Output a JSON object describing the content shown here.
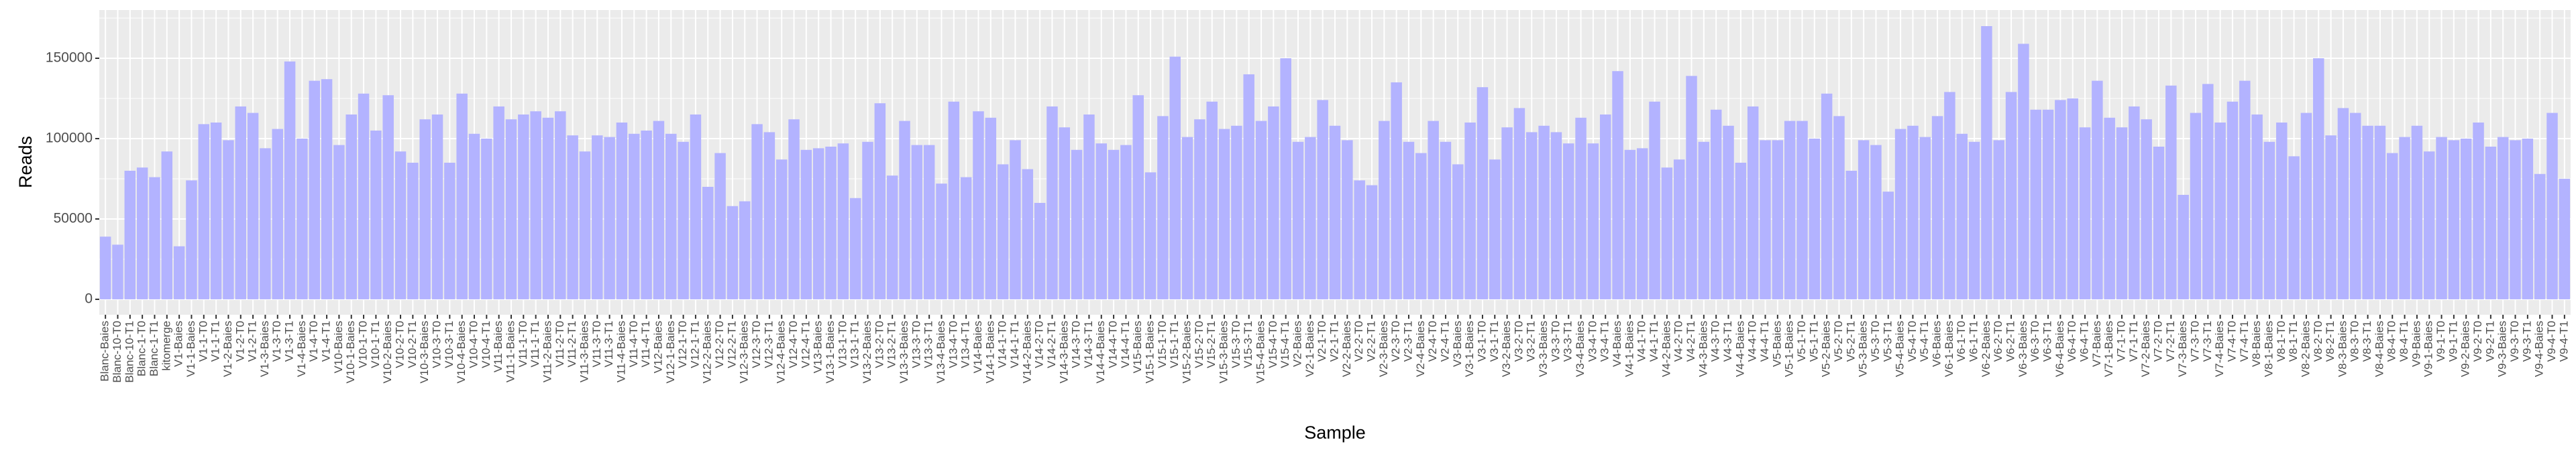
{
  "chart_data": {
    "type": "bar",
    "x_label": "Sample",
    "y_label": "Reads",
    "color": "#b3b3ff",
    "grid": true,
    "ylim": [
      -9600,
      180000
    ],
    "yticks": [
      0,
      50000,
      100000,
      150000
    ],
    "categories": [
      "Blanc-Baies",
      "Blanc-10-T0",
      "Blanc-10-T1",
      "Blanc-1-T0",
      "Blanc-1-T1",
      "kitomerge",
      "V1-Baies",
      "V1-1-Baies",
      "V1-1-T0",
      "V1-1-T1",
      "V1-2-Baies",
      "V1-2-T0",
      "V1-2-T1",
      "V1-3-Baies",
      "V1-3-T0",
      "V1-3-T1",
      "V1-4-Baies",
      "V1-4-T0",
      "V1-4-T1",
      "V10-Baies",
      "V10-1-Baies",
      "V10-1-T0",
      "V10-1-T1",
      "V10-2-Baies",
      "V10-2-T0",
      "V10-2-T1",
      "V10-3-Baies",
      "V10-3-T0",
      "V10-3-T1",
      "V10-4-Baies",
      "V10-4-T0",
      "V10-4-T1",
      "V11-Baies",
      "V11-1-Baies",
      "V11-1-T0",
      "V11-1-T1",
      "V11-2-Baies",
      "V11-2-T0",
      "V11-2-T1",
      "V11-3-Baies",
      "V11-3-T0",
      "V11-3-T1",
      "V11-4-Baies",
      "V11-4-T0",
      "V11-4-T1",
      "V12-Baies",
      "V12-1-Baies",
      "V12-1-T0",
      "V12-1-T1",
      "V12-2-Baies",
      "V12-2-T0",
      "V12-2-T1",
      "V12-3-Baies",
      "V12-3-T0",
      "V12-3-T1",
      "V12-4-Baies",
      "V12-4-T0",
      "V12-4-T1",
      "V13-Baies",
      "V13-1-Baies",
      "V13-1-T0",
      "V13-1-T1",
      "V13-2-Baies",
      "V13-2-T0",
      "V13-2-T1",
      "V13-3-Baies",
      "V13-3-T0",
      "V13-3-T1",
      "V13-4-Baies",
      "V13-4-T0",
      "V13-4-T1",
      "V14-Baies",
      "V14-1-Baies",
      "V14-1-T0",
      "V14-1-T1",
      "V14-2-Baies",
      "V14-2-T0",
      "V14-2-T1",
      "V14-3-Baies",
      "V14-3-T0",
      "V14-3-T1",
      "V14-4-Baies",
      "V14-4-T0",
      "V14-4-T1",
      "V15-Baies",
      "V15-1-Baies",
      "V15-1-T0",
      "V15-1-T1",
      "V15-2-Baies",
      "V15-2-T0",
      "V15-2-T1",
      "V15-3-Baies",
      "V15-3-T0",
      "V15-3-T1",
      "V15-4-Baies",
      "V15-4-T0",
      "V15-4-T1",
      "V2-Baies",
      "V2-1-Baies",
      "V2-1-T0",
      "V2-1-T1",
      "V2-2-Baies",
      "V2-2-T0",
      "V2-2-T1",
      "V2-3-Baies",
      "V2-3-T0",
      "V2-3-T1",
      "V2-4-Baies",
      "V2-4-T0",
      "V2-4-T1",
      "V3-Baies",
      "V3-1-Baies",
      "V3-1-T0",
      "V3-1-T1",
      "V3-2-Baies",
      "V3-2-T0",
      "V3-2-T1",
      "V3-3-Baies",
      "V3-3-T0",
      "V3-3-T1",
      "V3-4-Baies",
      "V3-4-T0",
      "V3-4-T1",
      "V4-Baies",
      "V4-1-Baies",
      "V4-1-T0",
      "V4-1-T1",
      "V4-2-Baies",
      "V4-2-T0",
      "V4-2-T1",
      "V4-3-Baies",
      "V4-3-T0",
      "V4-3-T1",
      "V4-4-Baies",
      "V4-4-T0",
      "V4-4-T1",
      "V5-Baies",
      "V5-1-Baies",
      "V5-1-T0",
      "V5-1-T1",
      "V5-2-Baies",
      "V5-2-T0",
      "V5-2-T1",
      "V5-3-Baies",
      "V5-3-T0",
      "V5-3-T1",
      "V5-4-Baies",
      "V5-4-T0",
      "V5-4-T1",
      "V6-Baies",
      "V6-1-Baies",
      "V6-1-T0",
      "V6-1-T1",
      "V6-2-Baies",
      "V6-2-T0",
      "V6-2-T1",
      "V6-3-Baies",
      "V6-3-T0",
      "V6-3-T1",
      "V6-4-Baies",
      "V6-4-T0",
      "V6-4-T1",
      "V7-Baies",
      "V7-1-Baies",
      "V7-1-T0",
      "V7-1-T1",
      "V7-2-Baies",
      "V7-2-T0",
      "V7-2-T1",
      "V7-3-Baies",
      "V7-3-T0",
      "V7-3-T1",
      "V7-4-Baies",
      "V7-4-T0",
      "V7-4-T1",
      "V8-Baies",
      "V8-1-Baies",
      "V8-1-T0",
      "V8-1-T1",
      "V8-2-Baies",
      "V8-2-T0",
      "V8-2-T1",
      "V8-3-Baies",
      "V8-3-T0",
      "V8-3-T1",
      "V8-4-Baies",
      "V8-4-T0",
      "V8-4-T1",
      "V9-Baies",
      "V9-1-Baies",
      "V9-1-T0",
      "V9-1-T1",
      "V9-2-Baies",
      "V9-2-T0",
      "V9-2-T1",
      "V9-3-Baies",
      "V9-3-T0",
      "V9-3-T1",
      "V9-4-Baies",
      "V9-4-T0",
      "V9-4-T1"
    ],
    "values": [
      39000,
      34000,
      80000,
      82000,
      76000,
      92000,
      33000,
      74000,
      109000,
      110000,
      99000,
      120000,
      116000,
      94000,
      106000,
      148000,
      100000,
      136000,
      137000,
      96000,
      115000,
      128000,
      105000,
      127000,
      92000,
      85000,
      112000,
      115000,
      85000,
      128000,
      103000,
      100000,
      120000,
      112000,
      115000,
      117000,
      113000,
      117000,
      102000,
      92000,
      102000,
      101000,
      110000,
      103000,
      105000,
      111000,
      103000,
      98000,
      115000,
      70000,
      91000,
      58000,
      61000,
      109000,
      104000,
      87000,
      112000,
      93000,
      94000,
      95000,
      97000,
      63000,
      98000,
      122000,
      77000,
      111000,
      96000,
      96000,
      72000,
      123000,
      76000,
      117000,
      113000,
      84000,
      99000,
      81000,
      60000,
      120000,
      107000,
      93000,
      115000,
      97000,
      93000,
      96000,
      127000,
      79000,
      114000,
      151000,
      101000,
      112000,
      123000,
      106000,
      108000,
      140000,
      111000,
      120000,
      150000,
      98000,
      101000,
      124000,
      108000,
      99000,
      74000,
      71000,
      111000,
      135000,
      98000,
      91000,
      111000,
      98000,
      84000,
      110000,
      132000,
      87000,
      107000,
      119000,
      104000,
      108000,
      104000,
      97000,
      113000,
      97000,
      115000,
      142000,
      93000,
      94000,
      123000,
      82000,
      87000,
      139000,
      98000,
      118000,
      108000,
      85000,
      120000,
      99000,
      99000,
      111000,
      111000,
      100000,
      128000,
      114000,
      80000,
      99000,
      96000,
      67000,
      106000,
      108000,
      101000,
      114000,
      129000,
      103000,
      98000,
      170000,
      99000,
      129000,
      159000,
      118000,
      118000,
      124000,
      125000,
      107000,
      136000,
      113000,
      107000,
      120000,
      112000,
      95000,
      133000,
      65000,
      116000,
      134000,
      110000,
      123000,
      136000,
      115000,
      98000,
      110000,
      89000,
      116000,
      150000,
      102000,
      119000,
      116000,
      108000,
      108000,
      91000,
      101000,
      108000,
      92000,
      101000,
      99000,
      100000,
      110000,
      95000,
      101000,
      99000,
      100000,
      78000,
      116000,
      75000
    ]
  }
}
